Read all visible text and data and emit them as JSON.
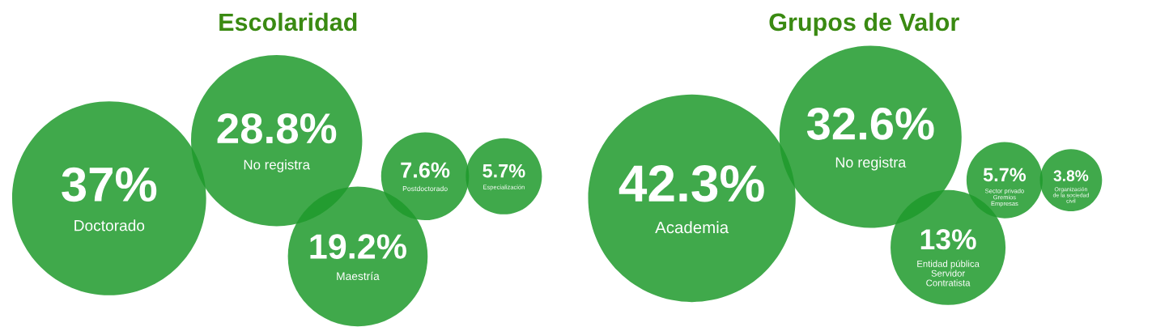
{
  "chart_data": [
    {
      "type": "other",
      "title": "Escolaridad",
      "color": "#1f9a2b",
      "categories": [
        "Doctorado",
        "No registra",
        "Maestría",
        "Postdoctorado",
        "Especialización"
      ],
      "values": [
        37,
        28.8,
        19.2,
        7.6,
        5.7
      ],
      "value_labels": [
        "37%",
        "28.8%",
        "19.2%",
        "7.6%",
        "5.7%"
      ]
    },
    {
      "type": "other",
      "title": "Grupos de Valor",
      "color": "#1f9a2b",
      "categories": [
        "Academia",
        "No registra",
        "Entidad pública\nServidor\nContratista",
        "Sector privado\nGremios\nEmpresas",
        "Organización\nde la sociedad\ncivil"
      ],
      "values": [
        42.3,
        32.6,
        13,
        5.7,
        3.8
      ],
      "value_labels": [
        "42.3%",
        "32.6%",
        "13%",
        "5.7%",
        "3.8%"
      ]
    }
  ]
}
